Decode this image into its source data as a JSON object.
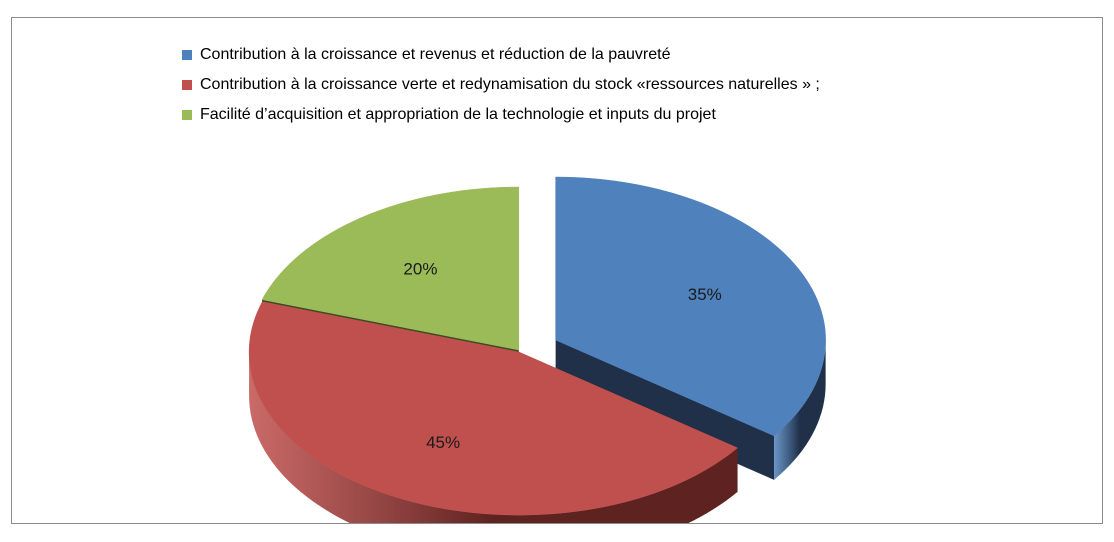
{
  "chart_data": {
    "type": "pie",
    "title": "",
    "style": "3d-exploded",
    "legend_position": "top",
    "categories": [
      "Contribution à la croissance et revenus et réduction de la pauvreté",
      "Contribution à la croissance verte et redynamisation du stock «ressources naturelles » ;",
      "Facilité d’acquisition et appropriation de la technologie et inputs du projet"
    ],
    "values": [
      35,
      45,
      20
    ],
    "labels": [
      "35%",
      "45%",
      "20%"
    ],
    "colors": [
      "#4f81bd",
      "#c0504d",
      "#9bbb59"
    ],
    "side_colors": [
      "#1f3048",
      "#5e2220",
      "#3d4a22"
    ]
  }
}
